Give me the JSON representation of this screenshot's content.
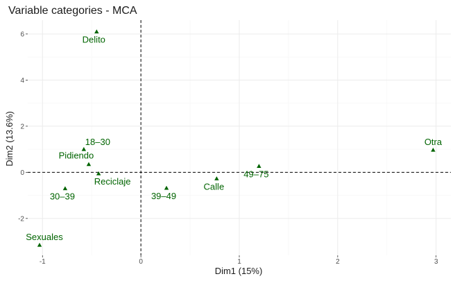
{
  "chart_data": {
    "type": "scatter",
    "title": "Variable categories - MCA",
    "xlabel": "Dim1 (15%)",
    "ylabel": "Dim2 (13.6%)",
    "xlim": [
      -1.15,
      3.15
    ],
    "ylim": [
      -3.6,
      6.6
    ],
    "xticks": [
      -1,
      0,
      1,
      2,
      3
    ],
    "yticks": [
      -2,
      0,
      2,
      4,
      6
    ],
    "reference_lines": {
      "x": 0,
      "y": 0,
      "style": "dashed"
    },
    "grid": true,
    "marker": "triangle",
    "color": "#006400",
    "points": [
      {
        "label": "Delito",
        "x": -0.45,
        "y": 6.1,
        "label_anchor": "below-left"
      },
      {
        "label": "18–30",
        "x": -0.58,
        "y": 1.0,
        "label_anchor": "above-right"
      },
      {
        "label": "Pidiendo",
        "x": -0.53,
        "y": 0.35,
        "label_anchor": "above-left"
      },
      {
        "label": "Reciclaje",
        "x": -0.43,
        "y": -0.05,
        "label_anchor": "below-right"
      },
      {
        "label": "30–39",
        "x": -0.77,
        "y": -0.7,
        "label_anchor": "below-left"
      },
      {
        "label": "39–49",
        "x": 0.26,
        "y": -0.68,
        "label_anchor": "below-left"
      },
      {
        "label": "Calle",
        "x": 0.77,
        "y": -0.27,
        "label_anchor": "below-left"
      },
      {
        "label": "49–75",
        "x": 1.2,
        "y": 0.27,
        "label_anchor": "below-left"
      },
      {
        "label": "Otra",
        "x": 2.97,
        "y": 0.97,
        "label_anchor": "above"
      },
      {
        "label": "Sexuales",
        "x": -1.03,
        "y": -3.15,
        "label_anchor": "above"
      }
    ]
  }
}
